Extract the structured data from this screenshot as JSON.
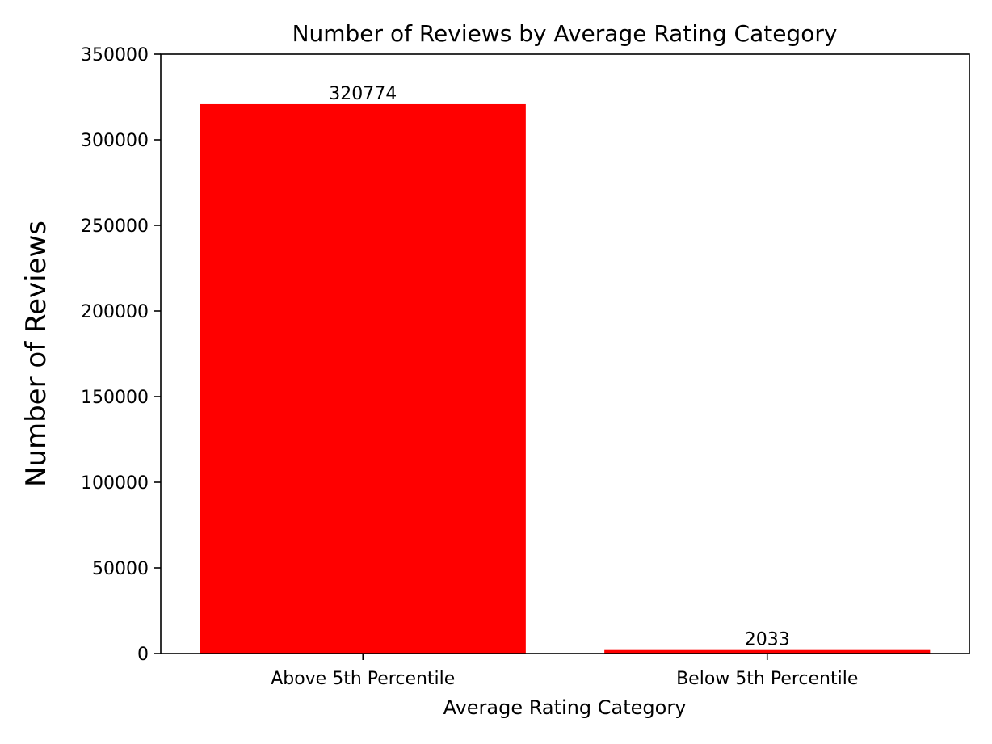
{
  "chart_data": {
    "type": "bar",
    "title": "Number of Reviews by Average Rating Category",
    "xlabel": "Average Rating Category",
    "ylabel": "Number of Reviews",
    "categories": [
      "Above 5th Percentile",
      "Below 5th Percentile"
    ],
    "values": [
      320774,
      2033
    ],
    "data_labels": [
      "320774",
      "2033"
    ],
    "ylim": [
      0,
      350000
    ],
    "yticks": [
      0,
      50000,
      100000,
      150000,
      200000,
      250000,
      300000,
      350000
    ],
    "ytick_labels": [
      "0",
      "50000",
      "100000",
      "150000",
      "200000",
      "250000",
      "300000",
      "350000"
    ],
    "bar_color": "#ff0000",
    "grid": false,
    "legend": "none"
  }
}
